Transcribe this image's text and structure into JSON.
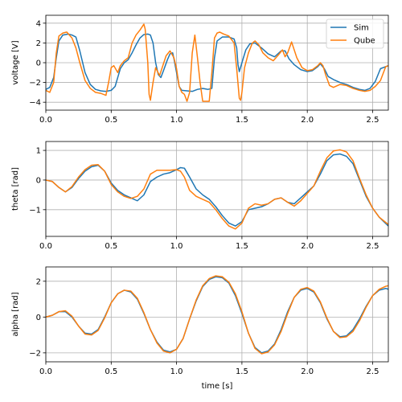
{
  "chart_data": [
    {
      "type": "line",
      "xlabel": "",
      "ylabel": "voltage [V]",
      "xlim": [
        0,
        2.62
      ],
      "ylim": [
        -4.8,
        4.8
      ],
      "xticks": [
        0.0,
        0.5,
        1.0,
        1.5,
        2.0,
        2.5
      ],
      "xtick_labels": [
        "0.0",
        "0.5",
        "1.0",
        "1.5",
        "2.0",
        "2.5"
      ],
      "yticks": [
        -4,
        -2,
        0,
        2,
        4
      ],
      "ytick_labels": [
        "−4",
        "−2",
        "0",
        "2",
        "4"
      ],
      "grid": true,
      "legend": {
        "placement": "top-right",
        "entries": [
          "Sim",
          "Qube"
        ]
      },
      "series": [
        {
          "name": "Sim",
          "color": "#1f77b4",
          "x": [
            0.0,
            0.03,
            0.06,
            0.08,
            0.1,
            0.13,
            0.17,
            0.2,
            0.23,
            0.26,
            0.3,
            0.34,
            0.38,
            0.42,
            0.46,
            0.5,
            0.53,
            0.55,
            0.57,
            0.6,
            0.63,
            0.66,
            0.69,
            0.72,
            0.75,
            0.78,
            0.8,
            0.82,
            0.84,
            0.86,
            0.88,
            0.9,
            0.93,
            0.95,
            0.97,
            0.98,
            1.0,
            1.02,
            1.04,
            1.08,
            1.12,
            1.16,
            1.2,
            1.24,
            1.27,
            1.29,
            1.31,
            1.35,
            1.4,
            1.44,
            1.46,
            1.47,
            1.48,
            1.5,
            1.53,
            1.56,
            1.6,
            1.65,
            1.7,
            1.75,
            1.8,
            1.83,
            1.86,
            1.9,
            1.95,
            2.0,
            2.04,
            2.08,
            2.1,
            2.13,
            2.16,
            2.2,
            2.25,
            2.3,
            2.35,
            2.4,
            2.44,
            2.48,
            2.52,
            2.56,
            2.62
          ],
          "y": [
            -2.7,
            -2.5,
            -1.5,
            0.5,
            2.2,
            2.8,
            2.9,
            2.8,
            2.6,
            1.2,
            -1.0,
            -2.2,
            -2.7,
            -2.85,
            -2.9,
            -2.8,
            -2.4,
            -1.5,
            -0.6,
            0.0,
            0.3,
            1.0,
            1.8,
            2.5,
            2.85,
            2.9,
            2.8,
            2.0,
            0.0,
            -1.2,
            -1.5,
            -0.8,
            0.3,
            0.9,
            1.0,
            0.4,
            -1.0,
            -2.4,
            -2.8,
            -2.85,
            -2.9,
            -2.7,
            -2.6,
            -2.7,
            -2.6,
            0.5,
            2.2,
            2.6,
            2.6,
            2.4,
            1.5,
            -0.2,
            -0.9,
            0.0,
            1.3,
            1.9,
            2.0,
            1.5,
            0.9,
            0.6,
            1.2,
            1.2,
            0.4,
            -0.2,
            -0.7,
            -0.9,
            -0.8,
            -0.4,
            -0.1,
            -0.6,
            -1.4,
            -1.7,
            -2.0,
            -2.2,
            -2.5,
            -2.7,
            -2.8,
            -2.6,
            -1.9,
            -0.6,
            -0.3
          ]
        },
        {
          "name": "Qube",
          "color": "#ff7f0e",
          "x": [
            0.0,
            0.03,
            0.06,
            0.08,
            0.1,
            0.13,
            0.16,
            0.2,
            0.23,
            0.26,
            0.3,
            0.34,
            0.38,
            0.42,
            0.46,
            0.48,
            0.5,
            0.52,
            0.55,
            0.57,
            0.6,
            0.63,
            0.66,
            0.69,
            0.72,
            0.75,
            0.76,
            0.78,
            0.79,
            0.8,
            0.82,
            0.84,
            0.87,
            0.89,
            0.92,
            0.95,
            0.98,
            1.0,
            1.02,
            1.04,
            1.06,
            1.08,
            1.1,
            1.12,
            1.14,
            1.16,
            1.18,
            1.2,
            1.22,
            1.25,
            1.27,
            1.29,
            1.31,
            1.33,
            1.36,
            1.4,
            1.44,
            1.46,
            1.48,
            1.49,
            1.5,
            1.52,
            1.55,
            1.58,
            1.6,
            1.63,
            1.66,
            1.7,
            1.74,
            1.78,
            1.81,
            1.83,
            1.85,
            1.88,
            1.92,
            1.96,
            2.0,
            2.04,
            2.08,
            2.1,
            2.12,
            2.14,
            2.17,
            2.2,
            2.25,
            2.3,
            2.35,
            2.4,
            2.44,
            2.48,
            2.52,
            2.56,
            2.6,
            2.62
          ],
          "y": [
            -2.8,
            -3.0,
            -2.0,
            1.0,
            2.7,
            3.0,
            3.1,
            2.5,
            1.5,
            0.0,
            -1.8,
            -2.6,
            -3.0,
            -3.1,
            -3.3,
            -2.0,
            -0.5,
            -0.3,
            -1.0,
            -0.3,
            0.2,
            0.5,
            2.0,
            2.8,
            3.3,
            3.9,
            3.4,
            0.0,
            -3.2,
            -3.8,
            -2.0,
            -0.5,
            -1.3,
            -0.5,
            0.7,
            1.2,
            0.5,
            -0.6,
            -2.4,
            -3.0,
            -3.2,
            -3.9,
            -3.0,
            1.0,
            2.8,
            0.5,
            -2.0,
            -3.9,
            -3.9,
            -3.9,
            -1.0,
            2.5,
            3.0,
            3.1,
            2.9,
            2.7,
            2.0,
            -0.6,
            -3.6,
            -3.8,
            -3.0,
            -0.5,
            1.0,
            2.0,
            2.2,
            1.8,
            1.0,
            0.5,
            0.2,
            0.8,
            1.3,
            0.6,
            1.0,
            2.1,
            0.5,
            -0.5,
            -0.8,
            -0.7,
            -0.3,
            0.0,
            -0.3,
            -1.2,
            -2.3,
            -2.5,
            -2.2,
            -2.3,
            -2.6,
            -2.8,
            -2.9,
            -2.8,
            -2.4,
            -1.8,
            -0.4,
            -0.3
          ]
        }
      ]
    },
    {
      "type": "line",
      "xlabel": "",
      "ylabel": "theta [rad]",
      "xlim": [
        0,
        2.62
      ],
      "ylim": [
        -1.9,
        1.3
      ],
      "xticks": [
        0.0,
        0.5,
        1.0,
        1.5,
        2.0,
        2.5
      ],
      "xtick_labels": [
        "0.0",
        "0.5",
        "1.0",
        "1.5",
        "2.0",
        "2.5"
      ],
      "yticks": [
        -1,
        0,
        1
      ],
      "ytick_labels": [
        "−1",
        "0",
        "1"
      ],
      "grid": true,
      "series": [
        {
          "name": "Sim",
          "color": "#1f77b4",
          "x": [
            0.0,
            0.05,
            0.1,
            0.15,
            0.2,
            0.25,
            0.3,
            0.35,
            0.4,
            0.45,
            0.5,
            0.55,
            0.6,
            0.65,
            0.7,
            0.75,
            0.8,
            0.85,
            0.9,
            0.95,
            1.0,
            1.03,
            1.06,
            1.1,
            1.15,
            1.2,
            1.25,
            1.3,
            1.35,
            1.4,
            1.45,
            1.5,
            1.55,
            1.6,
            1.65,
            1.7,
            1.75,
            1.8,
            1.85,
            1.9,
            1.95,
            2.0,
            2.05,
            2.1,
            2.15,
            2.2,
            2.25,
            2.3,
            2.35,
            2.4,
            2.45,
            2.5,
            2.55,
            2.62
          ],
          "y": [
            0.0,
            -0.05,
            -0.25,
            -0.4,
            -0.25,
            0.05,
            0.3,
            0.45,
            0.5,
            0.3,
            -0.1,
            -0.35,
            -0.5,
            -0.6,
            -0.7,
            -0.5,
            -0.05,
            0.1,
            0.2,
            0.25,
            0.35,
            0.42,
            0.4,
            0.1,
            -0.3,
            -0.5,
            -0.65,
            -0.9,
            -1.2,
            -1.45,
            -1.55,
            -1.4,
            -1.0,
            -0.95,
            -0.9,
            -0.8,
            -0.65,
            -0.6,
            -0.75,
            -0.8,
            -0.6,
            -0.4,
            -0.2,
            0.2,
            0.65,
            0.85,
            0.88,
            0.8,
            0.55,
            0.0,
            -0.55,
            -0.95,
            -1.25,
            -1.55
          ]
        },
        {
          "name": "Qube",
          "color": "#ff7f0e",
          "x": [
            0.0,
            0.05,
            0.1,
            0.15,
            0.2,
            0.25,
            0.3,
            0.35,
            0.4,
            0.45,
            0.5,
            0.55,
            0.6,
            0.65,
            0.7,
            0.75,
            0.8,
            0.85,
            0.9,
            0.95,
            1.0,
            1.03,
            1.06,
            1.1,
            1.15,
            1.2,
            1.25,
            1.3,
            1.35,
            1.4,
            1.45,
            1.5,
            1.55,
            1.6,
            1.65,
            1.7,
            1.75,
            1.8,
            1.85,
            1.9,
            1.95,
            2.0,
            2.05,
            2.1,
            2.15,
            2.2,
            2.25,
            2.3,
            2.35,
            2.4,
            2.45,
            2.5,
            2.55,
            2.62
          ],
          "y": [
            0.0,
            -0.05,
            -0.25,
            -0.4,
            -0.22,
            0.1,
            0.35,
            0.5,
            0.52,
            0.3,
            -0.15,
            -0.4,
            -0.55,
            -0.62,
            -0.55,
            -0.3,
            0.2,
            0.33,
            0.33,
            0.33,
            0.35,
            0.3,
            0.1,
            -0.35,
            -0.55,
            -0.65,
            -0.75,
            -1.0,
            -1.3,
            -1.55,
            -1.65,
            -1.45,
            -0.95,
            -0.8,
            -0.85,
            -0.8,
            -0.65,
            -0.6,
            -0.75,
            -0.88,
            -0.7,
            -0.45,
            -0.2,
            0.3,
            0.75,
            0.98,
            1.02,
            0.95,
            0.65,
            0.05,
            -0.5,
            -0.95,
            -1.25,
            -1.5
          ]
        }
      ]
    },
    {
      "type": "line",
      "xlabel": "time [s]",
      "ylabel": "alpha [rad]",
      "xlim": [
        0,
        2.62
      ],
      "ylim": [
        -2.5,
        2.8
      ],
      "xticks": [
        0.0,
        0.5,
        1.0,
        1.5,
        2.0,
        2.5
      ],
      "xtick_labels": [
        "0.0",
        "0.5",
        "1.0",
        "1.5",
        "2.0",
        "2.5"
      ],
      "yticks": [
        -2,
        0,
        2
      ],
      "ytick_labels": [
        "−2",
        "0",
        "2"
      ],
      "grid": true,
      "series": [
        {
          "name": "Sim",
          "color": "#1f77b4",
          "x": [
            0.0,
            0.05,
            0.1,
            0.15,
            0.2,
            0.25,
            0.3,
            0.35,
            0.4,
            0.45,
            0.5,
            0.55,
            0.6,
            0.65,
            0.7,
            0.75,
            0.8,
            0.85,
            0.9,
            0.95,
            1.0,
            1.05,
            1.1,
            1.15,
            1.2,
            1.25,
            1.3,
            1.35,
            1.4,
            1.45,
            1.5,
            1.55,
            1.6,
            1.65,
            1.7,
            1.75,
            1.8,
            1.85,
            1.9,
            1.95,
            2.0,
            2.05,
            2.1,
            2.15,
            2.2,
            2.25,
            2.3,
            2.35,
            2.4,
            2.45,
            2.5,
            2.55,
            2.6,
            2.62
          ],
          "y": [
            0.0,
            0.1,
            0.3,
            0.3,
            0.0,
            -0.5,
            -0.9,
            -0.95,
            -0.7,
            0.0,
            0.8,
            1.3,
            1.5,
            1.4,
            1.0,
            0.2,
            -0.7,
            -1.4,
            -1.85,
            -1.95,
            -1.8,
            -1.2,
            -0.1,
            0.9,
            1.7,
            2.1,
            2.25,
            2.2,
            1.9,
            1.2,
            0.2,
            -0.9,
            -1.7,
            -2.0,
            -1.9,
            -1.5,
            -0.7,
            0.3,
            1.1,
            1.5,
            1.6,
            1.4,
            0.8,
            -0.1,
            -0.8,
            -1.1,
            -1.05,
            -0.7,
            -0.1,
            0.6,
            1.2,
            1.5,
            1.6,
            1.55
          ]
        },
        {
          "name": "Qube",
          "color": "#ff7f0e",
          "x": [
            0.0,
            0.05,
            0.1,
            0.15,
            0.2,
            0.25,
            0.3,
            0.35,
            0.4,
            0.45,
            0.5,
            0.55,
            0.6,
            0.65,
            0.7,
            0.75,
            0.8,
            0.85,
            0.9,
            0.95,
            1.0,
            1.05,
            1.1,
            1.15,
            1.2,
            1.25,
            1.3,
            1.35,
            1.4,
            1.45,
            1.5,
            1.55,
            1.6,
            1.65,
            1.7,
            1.75,
            1.8,
            1.85,
            1.9,
            1.95,
            2.0,
            2.05,
            2.1,
            2.15,
            2.2,
            2.25,
            2.3,
            2.35,
            2.4,
            2.45,
            2.5,
            2.55,
            2.6,
            2.62
          ],
          "y": [
            0.0,
            0.1,
            0.3,
            0.35,
            0.05,
            -0.5,
            -0.95,
            -1.0,
            -0.75,
            -0.05,
            0.8,
            1.3,
            1.5,
            1.45,
            1.05,
            0.25,
            -0.7,
            -1.45,
            -1.9,
            -2.0,
            -1.8,
            -1.2,
            -0.1,
            0.95,
            1.75,
            2.15,
            2.3,
            2.25,
            1.95,
            1.3,
            0.3,
            -0.9,
            -1.75,
            -2.05,
            -1.95,
            -1.55,
            -0.8,
            0.2,
            1.1,
            1.55,
            1.65,
            1.45,
            0.85,
            -0.05,
            -0.8,
            -1.15,
            -1.1,
            -0.8,
            -0.2,
            0.55,
            1.2,
            1.55,
            1.72,
            1.75
          ]
        }
      ]
    }
  ]
}
